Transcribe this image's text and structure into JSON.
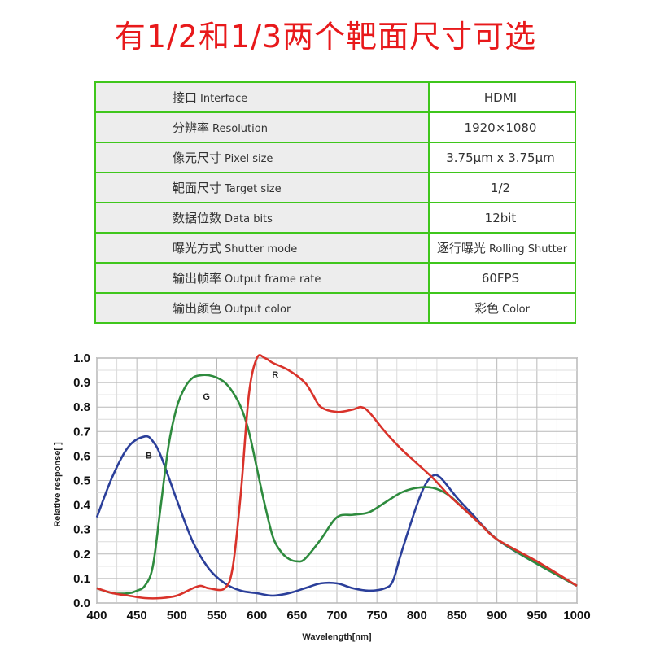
{
  "headline": "有1/2和1/3两个靶面尺寸可选",
  "specs": [
    {
      "cn": "接口",
      "en": "Interface",
      "value": "HDMI",
      "value_en": ""
    },
    {
      "cn": "分辨率",
      "en": "Resolution",
      "value": "1920×1080",
      "value_en": ""
    },
    {
      "cn": "像元尺寸",
      "en": "Pixel size",
      "value": "3.75μm x 3.75μm",
      "value_en": ""
    },
    {
      "cn": "靶面尺寸",
      "en": "Target size",
      "value": "1/2",
      "value_en": ""
    },
    {
      "cn": "数据位数",
      "en": "Data bits",
      "value": "12bit",
      "value_en": ""
    },
    {
      "cn": "曝光方式",
      "en": "Shutter mode",
      "value": "逐行曝光",
      "value_en": "Rolling Shutter"
    },
    {
      "cn": "输出帧率",
      "en": "Output frame rate",
      "value": "60FPS",
      "value_en": ""
    },
    {
      "cn": "输出颜色",
      "en": "Output color",
      "value": "彩色",
      "value_en": "Color"
    }
  ],
  "colors": {
    "headline": "#e8191b",
    "table_border": "#3fc61c",
    "label_bg": "#ededed"
  },
  "chart_data": {
    "type": "line",
    "xlabel": "Wavelength[nm]",
    "ylabel": "Relative response[ ]",
    "xlim": [
      400,
      1000
    ],
    "ylim": [
      0,
      1.0
    ],
    "xticks": [
      400,
      450,
      500,
      550,
      600,
      650,
      700,
      750,
      800,
      850,
      900,
      950,
      1000
    ],
    "yticks": [
      0.0,
      0.1,
      0.2,
      0.3,
      0.4,
      0.5,
      0.6,
      0.7,
      0.8,
      0.9,
      1.0
    ],
    "grid": true,
    "series": [
      {
        "name": "B",
        "color": "#2b3f9a",
        "x": [
          400,
          420,
          440,
          460,
          470,
          480,
          500,
          520,
          540,
          560,
          580,
          600,
          620,
          640,
          660,
          680,
          700,
          720,
          740,
          760,
          770,
          780,
          800,
          810,
          820,
          830,
          850,
          870,
          900,
          950,
          1000
        ],
        "y": [
          0.35,
          0.52,
          0.64,
          0.68,
          0.66,
          0.6,
          0.42,
          0.25,
          0.14,
          0.08,
          0.05,
          0.04,
          0.03,
          0.04,
          0.06,
          0.08,
          0.08,
          0.06,
          0.05,
          0.06,
          0.09,
          0.2,
          0.4,
          0.48,
          0.52,
          0.51,
          0.43,
          0.36,
          0.26,
          0.16,
          0.07
        ]
      },
      {
        "name": "G",
        "color": "#2e8b3e",
        "x": [
          400,
          420,
          440,
          450,
          460,
          470,
          480,
          490,
          500,
          510,
          520,
          530,
          540,
          550,
          560,
          570,
          580,
          590,
          600,
          610,
          620,
          630,
          640,
          650,
          660,
          680,
          700,
          720,
          740,
          760,
          780,
          800,
          820,
          840,
          860,
          880,
          900,
          950,
          1000
        ],
        "y": [
          0.06,
          0.04,
          0.04,
          0.05,
          0.07,
          0.15,
          0.4,
          0.65,
          0.8,
          0.88,
          0.92,
          0.93,
          0.93,
          0.92,
          0.9,
          0.86,
          0.8,
          0.7,
          0.55,
          0.4,
          0.27,
          0.21,
          0.18,
          0.17,
          0.18,
          0.26,
          0.35,
          0.36,
          0.37,
          0.41,
          0.45,
          0.47,
          0.47,
          0.44,
          0.38,
          0.32,
          0.26,
          0.16,
          0.07
        ]
      },
      {
        "name": "R",
        "color": "#d9322a",
        "x": [
          400,
          420,
          440,
          460,
          480,
          500,
          520,
          530,
          540,
          560,
          570,
          580,
          590,
          600,
          610,
          620,
          640,
          660,
          670,
          680,
          700,
          720,
          730,
          740,
          760,
          780,
          800,
          820,
          840,
          860,
          880,
          900,
          950,
          1000
        ],
        "y": [
          0.06,
          0.04,
          0.03,
          0.02,
          0.02,
          0.03,
          0.06,
          0.07,
          0.06,
          0.06,
          0.15,
          0.45,
          0.85,
          1.0,
          1.0,
          0.98,
          0.95,
          0.9,
          0.85,
          0.8,
          0.78,
          0.79,
          0.8,
          0.78,
          0.7,
          0.63,
          0.57,
          0.51,
          0.44,
          0.38,
          0.32,
          0.26,
          0.17,
          0.07
        ]
      }
    ]
  }
}
